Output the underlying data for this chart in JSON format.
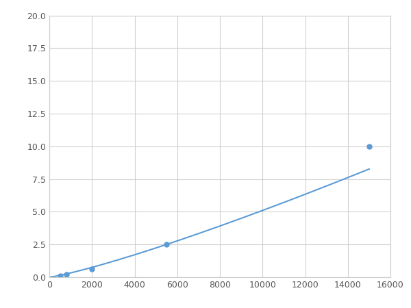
{
  "x_points": [
    200,
    500,
    800,
    2000,
    5500,
    15000
  ],
  "y_points": [
    0.07,
    0.12,
    0.2,
    0.65,
    2.5,
    10.0
  ],
  "marker_x": [
    500,
    800,
    2000,
    5500,
    15000
  ],
  "marker_y": [
    0.12,
    0.2,
    0.65,
    2.5,
    10.0
  ],
  "line_color": "#5b9bd5",
  "marker_color": "#5b9bd5",
  "marker_size": 5,
  "xlim": [
    0,
    16000
  ],
  "ylim": [
    0,
    20
  ],
  "xticks": [
    0,
    2000,
    4000,
    6000,
    8000,
    10000,
    12000,
    14000,
    16000
  ],
  "yticks": [
    0.0,
    2.5,
    5.0,
    7.5,
    10.0,
    12.5,
    15.0,
    17.5,
    20.0
  ],
  "grid": true,
  "background_color": "#ffffff",
  "figsize": [
    6.0,
    4.5
  ],
  "dpi": 100,
  "power_a": 1.2e-05,
  "power_n": 1.55
}
